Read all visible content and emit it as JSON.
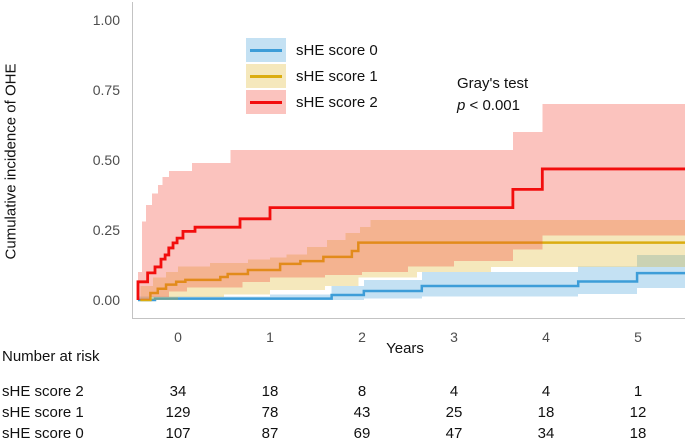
{
  "figure": {
    "ylabel": "Cumulative incidence of OHE",
    "xlabel": "Years",
    "annotation": {
      "line1": "Gray's test",
      "p_symbol": "p",
      "p_rest": " < 0.001"
    }
  },
  "legend": {
    "items": [
      {
        "label": "sHE score 0",
        "line_color": "#3d9dd8",
        "fill_color": "#c4e1f3"
      },
      {
        "label": "sHE score 1",
        "line_color": "#dbad10",
        "fill_color": "#f5e8bc"
      },
      {
        "label": "sHE score 2",
        "line_color": "#f20d0d",
        "fill_color": "#fbc3be"
      }
    ]
  },
  "risk_table": {
    "title": "Number at risk",
    "times": [
      0,
      1,
      2,
      3,
      4,
      5
    ],
    "rows": [
      {
        "label": "sHE score 2",
        "values": [
          "34",
          "18",
          "8",
          "4",
          "4",
          "1"
        ]
      },
      {
        "label": "sHE score 1",
        "values": [
          "129",
          "78",
          "43",
          "25",
          "18",
          "12"
        ]
      },
      {
        "label": "sHE score 0",
        "values": [
          "107",
          "87",
          "69",
          "47",
          "34",
          "18"
        ]
      }
    ]
  },
  "chart_data": {
    "type": "line",
    "subtype": "cumulative-incidence-step-with-ci",
    "title": "",
    "xlabel": "Years",
    "ylabel": "Cumulative incidence of OHE",
    "xlim": [
      -0.5,
      5.51
    ],
    "ylim": [
      0,
      1.0
    ],
    "grid": false,
    "legend_position": "top-left-inset",
    "x_ticks": [
      0,
      1,
      2,
      3,
      4,
      5
    ],
    "y_ticks": [
      {
        "value": 0.0,
        "label": "0.00"
      },
      {
        "value": 0.25,
        "label": "0.25"
      },
      {
        "value": 0.5,
        "label": "0.50"
      },
      {
        "value": 0.75,
        "label": "0.75"
      },
      {
        "value": 1.0,
        "label": "1.00"
      }
    ],
    "series": [
      {
        "name": "sHE score 0",
        "line_color": "#3d9dd8",
        "band_color": "rgba(61,157,216,0.30)",
        "steps": [
          [
            -0.435,
            0
          ],
          [
            -0.25,
            0.005
          ],
          [
            1.67,
            0.018
          ],
          [
            2.02,
            0.032
          ],
          [
            2.65,
            0.05
          ],
          [
            4.35,
            0.066
          ],
          [
            4.99,
            0.096
          ]
        ],
        "ci_upper": [
          [
            -0.435,
            0.012
          ],
          [
            1.0,
            0.02
          ],
          [
            1.67,
            0.05
          ],
          [
            2.02,
            0.072
          ],
          [
            2.65,
            0.1
          ],
          [
            4.35,
            0.12
          ],
          [
            4.99,
            0.16
          ]
        ],
        "ci_lower": [
          [
            -0.435,
            0
          ],
          [
            2.02,
            0.006
          ],
          [
            2.65,
            0.012
          ],
          [
            4.35,
            0.022
          ],
          [
            4.99,
            0.042
          ]
        ]
      },
      {
        "name": "sHE score 1",
        "line_color": "#dbad10",
        "band_color": "rgba(219,173,16,0.28)",
        "steps": [
          [
            -0.41,
            0
          ],
          [
            -0.3,
            0.025
          ],
          [
            -0.22,
            0.04
          ],
          [
            -0.13,
            0.055
          ],
          [
            -0.02,
            0.065
          ],
          [
            0.08,
            0.072
          ],
          [
            0.46,
            0.082
          ],
          [
            0.54,
            0.093
          ],
          [
            0.76,
            0.107
          ],
          [
            1.11,
            0.129
          ],
          [
            1.33,
            0.139
          ],
          [
            1.58,
            0.154
          ],
          [
            1.89,
            0.175
          ],
          [
            1.96,
            0.205
          ]
        ],
        "ci_upper": [
          [
            -0.41,
            0.05
          ],
          [
            -0.27,
            0.08
          ],
          [
            -0.13,
            0.1
          ],
          [
            0.0,
            0.12
          ],
          [
            0.35,
            0.132
          ],
          [
            0.76,
            0.145
          ],
          [
            1.0,
            0.152
          ],
          [
            1.18,
            0.162
          ],
          [
            1.4,
            0.19
          ],
          [
            1.62,
            0.214
          ],
          [
            1.82,
            0.24
          ],
          [
            1.98,
            0.26
          ],
          [
            2.09,
            0.286
          ]
        ],
        "ci_lower": [
          [
            -0.41,
            0
          ],
          [
            0.0,
            0.01
          ],
          [
            0.5,
            0.02
          ],
          [
            1.0,
            0.035
          ],
          [
            1.6,
            0.05
          ],
          [
            1.96,
            0.08
          ],
          [
            2.6,
            0.1
          ],
          [
            3.4,
            0.118
          ]
        ]
      },
      {
        "name": "sHE score 2",
        "line_color": "#f20d0d",
        "band_color": "rgba(244,67,54,0.32)",
        "steps": [
          [
            -0.435,
            0
          ],
          [
            -0.435,
            0.065
          ],
          [
            -0.33,
            0.097
          ],
          [
            -0.25,
            0.118
          ],
          [
            -0.185,
            0.146
          ],
          [
            -0.14,
            0.161
          ],
          [
            -0.1,
            0.186
          ],
          [
            -0.054,
            0.204
          ],
          [
            -0.01,
            0.221
          ],
          [
            0.054,
            0.245
          ],
          [
            0.185,
            0.26
          ],
          [
            0.674,
            0.29
          ],
          [
            1.0,
            0.33
          ],
          [
            3.64,
            0.395
          ],
          [
            3.96,
            0.468
          ]
        ],
        "ci_upper": [
          [
            -0.435,
            0.1
          ],
          [
            -0.39,
            0.28
          ],
          [
            -0.35,
            0.34
          ],
          [
            -0.28,
            0.38
          ],
          [
            -0.22,
            0.41
          ],
          [
            -0.17,
            0.44
          ],
          [
            -0.1,
            0.46
          ],
          [
            0.15,
            0.49
          ],
          [
            0.57,
            0.535
          ],
          [
            3.64,
            0.6
          ],
          [
            3.96,
            0.7
          ]
        ],
        "ci_lower": [
          [
            -0.435,
            0
          ],
          [
            -0.3,
            0.01
          ],
          [
            -0.1,
            0.03
          ],
          [
            0.1,
            0.045
          ],
          [
            0.7,
            0.065
          ],
          [
            1.0,
            0.08
          ],
          [
            1.6,
            0.09
          ],
          [
            2.0,
            0.1
          ],
          [
            2.5,
            0.12
          ],
          [
            3.0,
            0.14
          ],
          [
            3.64,
            0.18
          ],
          [
            3.96,
            0.23
          ]
        ]
      }
    ]
  }
}
